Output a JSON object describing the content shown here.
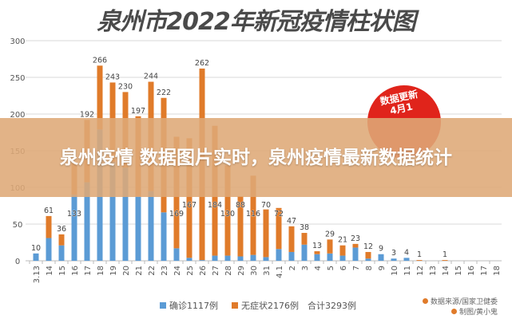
{
  "chart_data": {
    "type": "bar",
    "stacked": true,
    "title": "泉州市2022年新冠疫情柱状图",
    "xlabel": "",
    "ylabel": "",
    "ylim": [
      0,
      300
    ],
    "yticks": [
      0,
      50,
      100,
      150,
      200,
      250,
      300
    ],
    "grid": true,
    "legend_position": "bottom",
    "categories": [
      "3.13",
      "14",
      "15",
      "16",
      "17",
      "18",
      "19",
      "20",
      "21",
      "22",
      "23",
      "24",
      "25",
      "26",
      "27",
      "28",
      "29",
      "30",
      "31",
      "4.1",
      "2",
      "3",
      "4",
      "5",
      "6",
      "7",
      "8",
      "9",
      "10",
      "11",
      "12",
      "13",
      "14",
      "15",
      "16",
      "17",
      "18"
    ],
    "series": [
      {
        "name": "确诊1117例",
        "color": "#5b9bd5",
        "values": [
          10,
          31,
          21,
          90,
          107,
          179,
          135,
          127,
          88,
          95,
          66,
          17,
          4,
          1,
          7,
          7,
          6,
          8,
          5,
          16,
          12,
          22,
          9,
          10,
          7,
          18,
          3,
          9,
          3,
          4,
          0,
          0,
          0,
          0,
          0,
          0,
          0
        ]
      },
      {
        "name": "无症状2176例",
        "color": "#e07b2a",
        "values": [
          0,
          30,
          15,
          43,
          85,
          87,
          108,
          103,
          109,
          149,
          156,
          152,
          163,
          261,
          177,
          123,
          82,
          108,
          65,
          56,
          35,
          16,
          4,
          19,
          14,
          5,
          9,
          0,
          0,
          0,
          1,
          0,
          1,
          0,
          0,
          0,
          0
        ]
      }
    ],
    "totals": [
      10,
      61,
      36,
      133,
      192,
      266,
      243,
      230,
      197,
      244,
      222,
      169,
      167,
      262,
      184,
      130,
      88,
      116,
      70,
      72,
      47,
      38,
      13,
      29,
      21,
      23,
      12,
      9,
      3,
      4,
      1,
      0,
      1,
      0,
      0,
      0,
      0
    ],
    "total_label": "合计3293例"
  },
  "banner": {
    "text": "泉州疫情 数据图片实时，泉州疫情最新数据统计"
  },
  "seal": {
    "line1": "数据更新",
    "line2": "4月1"
  },
  "credits": {
    "source": "数据来源/国家卫健委",
    "author": "制图/黄小鬼"
  }
}
